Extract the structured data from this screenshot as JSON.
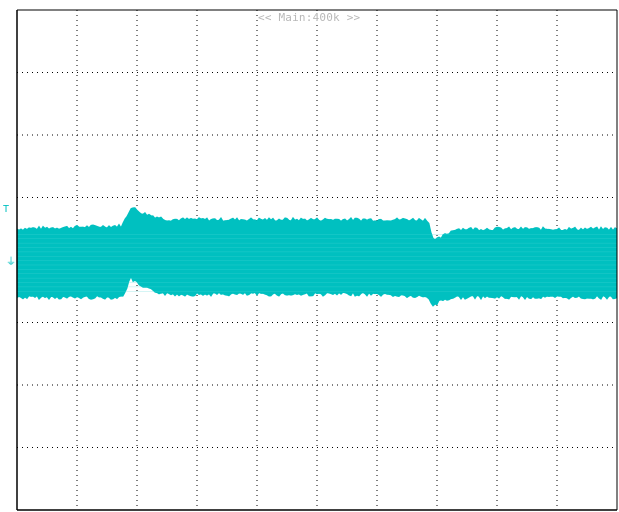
{
  "zoom_label": "<< Main:400k >>",
  "markers": {
    "trigger_marker": "T",
    "ground_marker": "⏚"
  },
  "colors": {
    "trace": "#00c0c0",
    "grid": "#000000",
    "background": "#ffffff",
    "label": "#b8b8b8"
  },
  "grid": {
    "h_divisions": 10,
    "v_divisions": 8
  },
  "chart_data": {
    "type": "line",
    "title": "",
    "xlabel": "",
    "ylabel": "",
    "xlim": [
      0,
      10
    ],
    "ylim": [
      -4,
      4
    ],
    "series": [
      {
        "x": [
          0,
          1.75,
          1.9,
          2.1,
          2.5,
          4,
          6,
          6.85,
          6.95,
          7.05,
          7.3,
          8,
          10
        ],
        "upper": [
          0.5,
          0.55,
          0.85,
          0.75,
          0.65,
          0.65,
          0.65,
          0.65,
          0.3,
          0.35,
          0.5,
          0.5,
          0.5
        ],
        "lower": [
          -0.6,
          -0.6,
          -0.3,
          -0.45,
          -0.55,
          -0.55,
          -0.55,
          -0.6,
          -0.75,
          -0.65,
          -0.6,
          -0.6,
          -0.6
        ]
      }
    ]
  }
}
